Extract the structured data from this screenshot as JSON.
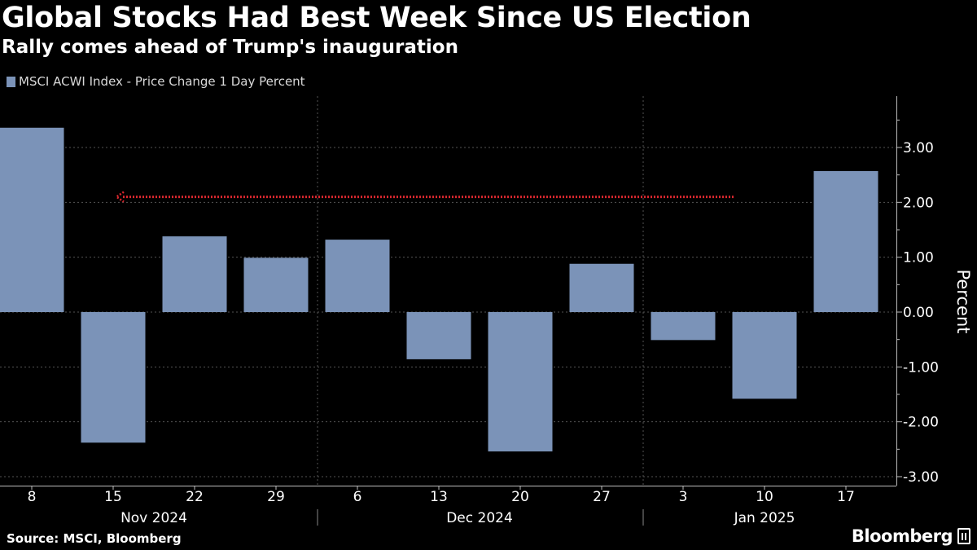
{
  "title": "Global Stocks Had Best Week Since US Election",
  "subtitle": "Rally comes ahead of Trump's inauguration",
  "source": "Source: MSCI, Bloomberg",
  "brand": "Bloomberg",
  "colors": {
    "background": "#000000",
    "bar": "#7b93b8",
    "arrow": "#d9272e",
    "grid": "#555555",
    "text": "#ffffff"
  },
  "chart_data": {
    "type": "bar",
    "legend": "MSCI ACWI Index - Price Change 1 Day Percent",
    "categories": [
      "8",
      "15",
      "22",
      "29",
      "6",
      "13",
      "20",
      "27",
      "3",
      "10",
      "17"
    ],
    "month_groups": [
      {
        "label": "Nov 2024",
        "categories": [
          "8",
          "15",
          "22",
          "29"
        ]
      },
      {
        "label": "Dec 2024",
        "categories": [
          "6",
          "13",
          "20",
          "27"
        ]
      },
      {
        "label": "Jan 2025",
        "categories": [
          "3",
          "10",
          "17"
        ]
      }
    ],
    "values": [
      3.36,
      -2.38,
      1.38,
      0.99,
      1.32,
      -0.86,
      -2.54,
      0.88,
      -0.51,
      -1.58,
      2.57
    ],
    "ylabel": "Percent",
    "ylim": [
      -3.0,
      3.9
    ],
    "yticks": [
      3.0,
      2.0,
      1.0,
      0.0,
      -1.0,
      -2.0,
      -3.0
    ],
    "ytick_labels": [
      "3.00",
      "2.00",
      "1.00",
      "0.00",
      "-1.00",
      "-2.00",
      "-3.00"
    ],
    "y_axis_side": "right",
    "grid": "dotted",
    "annotation": {
      "type": "arrow",
      "y": 2.1,
      "from_category": "17",
      "to_category": "15",
      "direction": "left"
    }
  }
}
